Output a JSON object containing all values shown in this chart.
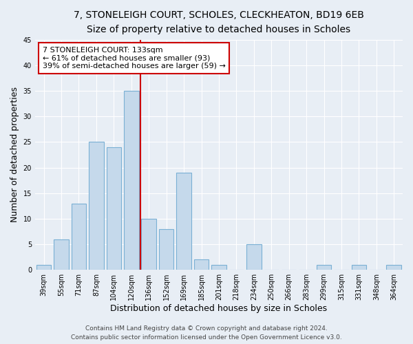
{
  "title": "7, STONELEIGH COURT, SCHOLES, CLECKHEATON, BD19 6EB",
  "subtitle": "Size of property relative to detached houses in Scholes",
  "xlabel": "Distribution of detached houses by size in Scholes",
  "ylabel": "Number of detached properties",
  "bar_color": "#c5d9eb",
  "bar_edge_color": "#7ab0d4",
  "background_color": "#e8eef5",
  "bin_edges": [
    39,
    55,
    71,
    87,
    104,
    120,
    136,
    152,
    169,
    185,
    201,
    218,
    234,
    250,
    266,
    283,
    299,
    315,
    331,
    348,
    364
  ],
  "bin_labels": [
    "39sqm",
    "55sqm",
    "71sqm",
    "87sqm",
    "104sqm",
    "120sqm",
    "136sqm",
    "152sqm",
    "169sqm",
    "185sqm",
    "201sqm",
    "218sqm",
    "234sqm",
    "250sqm",
    "266sqm",
    "283sqm",
    "299sqm",
    "315sqm",
    "331sqm",
    "348sqm",
    "364sqm"
  ],
  "counts": [
    1,
    6,
    13,
    25,
    24,
    35,
    10,
    8,
    19,
    2,
    1,
    0,
    5,
    0,
    0,
    0,
    1,
    0,
    1,
    0,
    1
  ],
  "property_line_x": 136,
  "property_line_color": "#cc0000",
  "annotation_title": "7 STONELEIGH COURT: 133sqm",
  "annotation_line1": "← 61% of detached houses are smaller (93)",
  "annotation_line2": "39% of semi-detached houses are larger (59) →",
  "annotation_box_color": "#ffffff",
  "annotation_box_edge": "#cc0000",
  "ylim": [
    0,
    45
  ],
  "yticks": [
    0,
    5,
    10,
    15,
    20,
    25,
    30,
    35,
    40,
    45
  ],
  "footer1": "Contains HM Land Registry data © Crown copyright and database right 2024.",
  "footer2": "Contains public sector information licensed under the Open Government Licence v3.0.",
  "title_fontsize": 10,
  "subtitle_fontsize": 9.5,
  "label_fontsize": 9,
  "tick_fontsize": 7,
  "annotation_fontsize": 8,
  "footer_fontsize": 6.5
}
